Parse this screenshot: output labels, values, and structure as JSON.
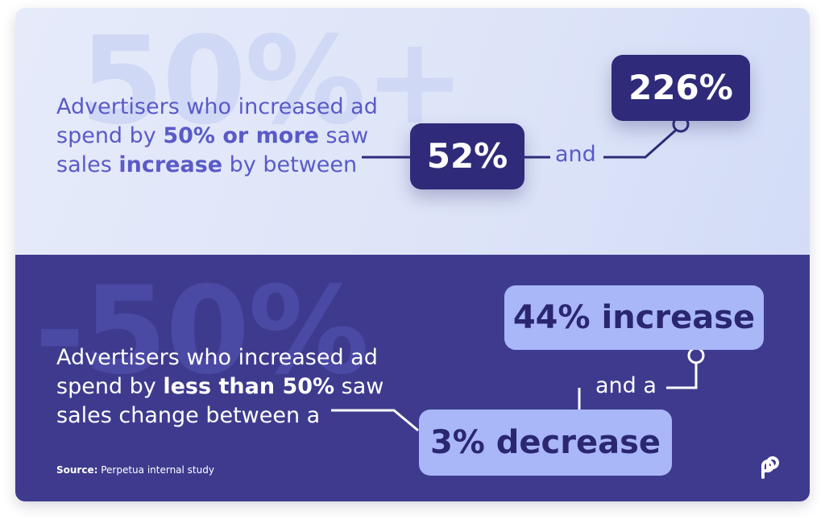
{
  "top": {
    "background_number": "50%+",
    "line1": "Advertisers who increased ad",
    "line2_pre": "spend by ",
    "line2_bold": "50% or more",
    "line2_post": " saw",
    "line3_pre": "sales ",
    "line3_bold": "increase",
    "line3_post": " by between",
    "value_low": "52%",
    "connector": "and",
    "value_high": "226%"
  },
  "bottom": {
    "background_number": "-50%",
    "line1": "Advertisers who increased ad",
    "line2_pre": "spend by ",
    "line2_bold": "less than 50%",
    "line2_post": " saw",
    "line3": "sales change between a",
    "value_high": "44% increase",
    "connector": "and a",
    "value_low": "3% decrease",
    "source_label": "Source:",
    "source_text": " Perpetua internal study"
  },
  "brand": {
    "logo_icon": "perpetua-logo-icon"
  },
  "colors": {
    "top_bg": "#dde4f8",
    "bottom_bg": "#3e3b8e",
    "top_text": "#5a5ac8",
    "dark_box": "#2f2b7a",
    "light_box": "#a9b7f9"
  }
}
